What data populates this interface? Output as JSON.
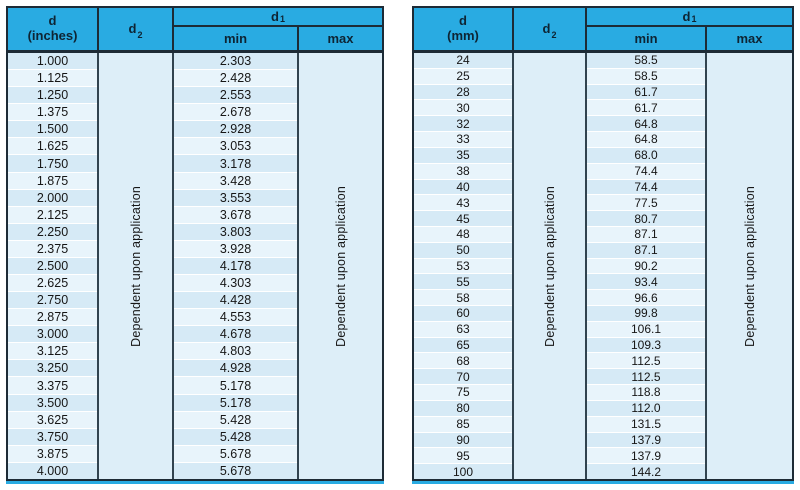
{
  "colors": {
    "header_bg": "#29abe2",
    "border_dark": "#1d2b36",
    "row_dark": "#d6eaf6",
    "row_light": "#e8f4fb",
    "accent_strip": "#29abe2",
    "text": "#161616"
  },
  "tables": [
    {
      "name": "inches",
      "header": {
        "col1_line1": "d",
        "col1_line2": "(inches)",
        "col2_base": "d",
        "col2_sub": "2",
        "col3_base": "d",
        "col3_sub": "1",
        "min_label": "min",
        "max_label": "max"
      },
      "d2_note": "Dependent upon application",
      "max_note": "Dependent upon application",
      "rows": [
        {
          "d": "1.000",
          "min": "2.303"
        },
        {
          "d": "1.125",
          "min": "2.428"
        },
        {
          "d": "1.250",
          "min": "2.553"
        },
        {
          "d": "1.375",
          "min": "2.678"
        },
        {
          "d": "1.500",
          "min": "2.928"
        },
        {
          "d": "1.625",
          "min": "3.053"
        },
        {
          "d": "1.750",
          "min": "3.178"
        },
        {
          "d": "1.875",
          "min": "3.428"
        },
        {
          "d": "2.000",
          "min": "3.553"
        },
        {
          "d": "2.125",
          "min": "3.678"
        },
        {
          "d": "2.250",
          "min": "3.803"
        },
        {
          "d": "2.375",
          "min": "3.928"
        },
        {
          "d": "2.500",
          "min": "4.178"
        },
        {
          "d": "2.625",
          "min": "4.303"
        },
        {
          "d": "2.750",
          "min": "4.428"
        },
        {
          "d": "2.875",
          "min": "4.553"
        },
        {
          "d": "3.000",
          "min": "4.678"
        },
        {
          "d": "3.125",
          "min": "4.803"
        },
        {
          "d": "3.250",
          "min": "4.928"
        },
        {
          "d": "3.375",
          "min": "5.178"
        },
        {
          "d": "3.500",
          "min": "5.178"
        },
        {
          "d": "3.625",
          "min": "5.428"
        },
        {
          "d": "3.750",
          "min": "5.428"
        },
        {
          "d": "3.875",
          "min": "5.678"
        },
        {
          "d": "4.000",
          "min": "5.678"
        }
      ]
    },
    {
      "name": "mm",
      "header": {
        "col1_line1": "d",
        "col1_line2": "(mm)",
        "col2_base": "d",
        "col2_sub": "2",
        "col3_base": "d",
        "col3_sub": "1",
        "min_label": "min",
        "max_label": "max"
      },
      "d2_note": "Dependent upon application",
      "max_note": "Dependent upon application",
      "rows": [
        {
          "d": "24",
          "min": "58.5"
        },
        {
          "d": "25",
          "min": "58.5"
        },
        {
          "d": "28",
          "min": "61.7"
        },
        {
          "d": "30",
          "min": "61.7"
        },
        {
          "d": "32",
          "min": "64.8"
        },
        {
          "d": "33",
          "min": "64.8"
        },
        {
          "d": "35",
          "min": "68.0"
        },
        {
          "d": "38",
          "min": "74.4"
        },
        {
          "d": "40",
          "min": "74.4"
        },
        {
          "d": "43",
          "min": "77.5"
        },
        {
          "d": "45",
          "min": "80.7"
        },
        {
          "d": "48",
          "min": "87.1"
        },
        {
          "d": "50",
          "min": "87.1"
        },
        {
          "d": "53",
          "min": "90.2"
        },
        {
          "d": "55",
          "min": "93.4"
        },
        {
          "d": "58",
          "min": "96.6"
        },
        {
          "d": "60",
          "min": "99.8"
        },
        {
          "d": "63",
          "min": "106.1"
        },
        {
          "d": "65",
          "min": "109.3"
        },
        {
          "d": "68",
          "min": "112.5"
        },
        {
          "d": "70",
          "min": "112.5"
        },
        {
          "d": "75",
          "min": "118.8"
        },
        {
          "d": "80",
          "min": "112.0"
        },
        {
          "d": "85",
          "min": "131.5"
        },
        {
          "d": "90",
          "min": "137.9"
        },
        {
          "d": "95",
          "min": "137.9"
        },
        {
          "d": "100",
          "min": "144.2"
        }
      ]
    }
  ]
}
